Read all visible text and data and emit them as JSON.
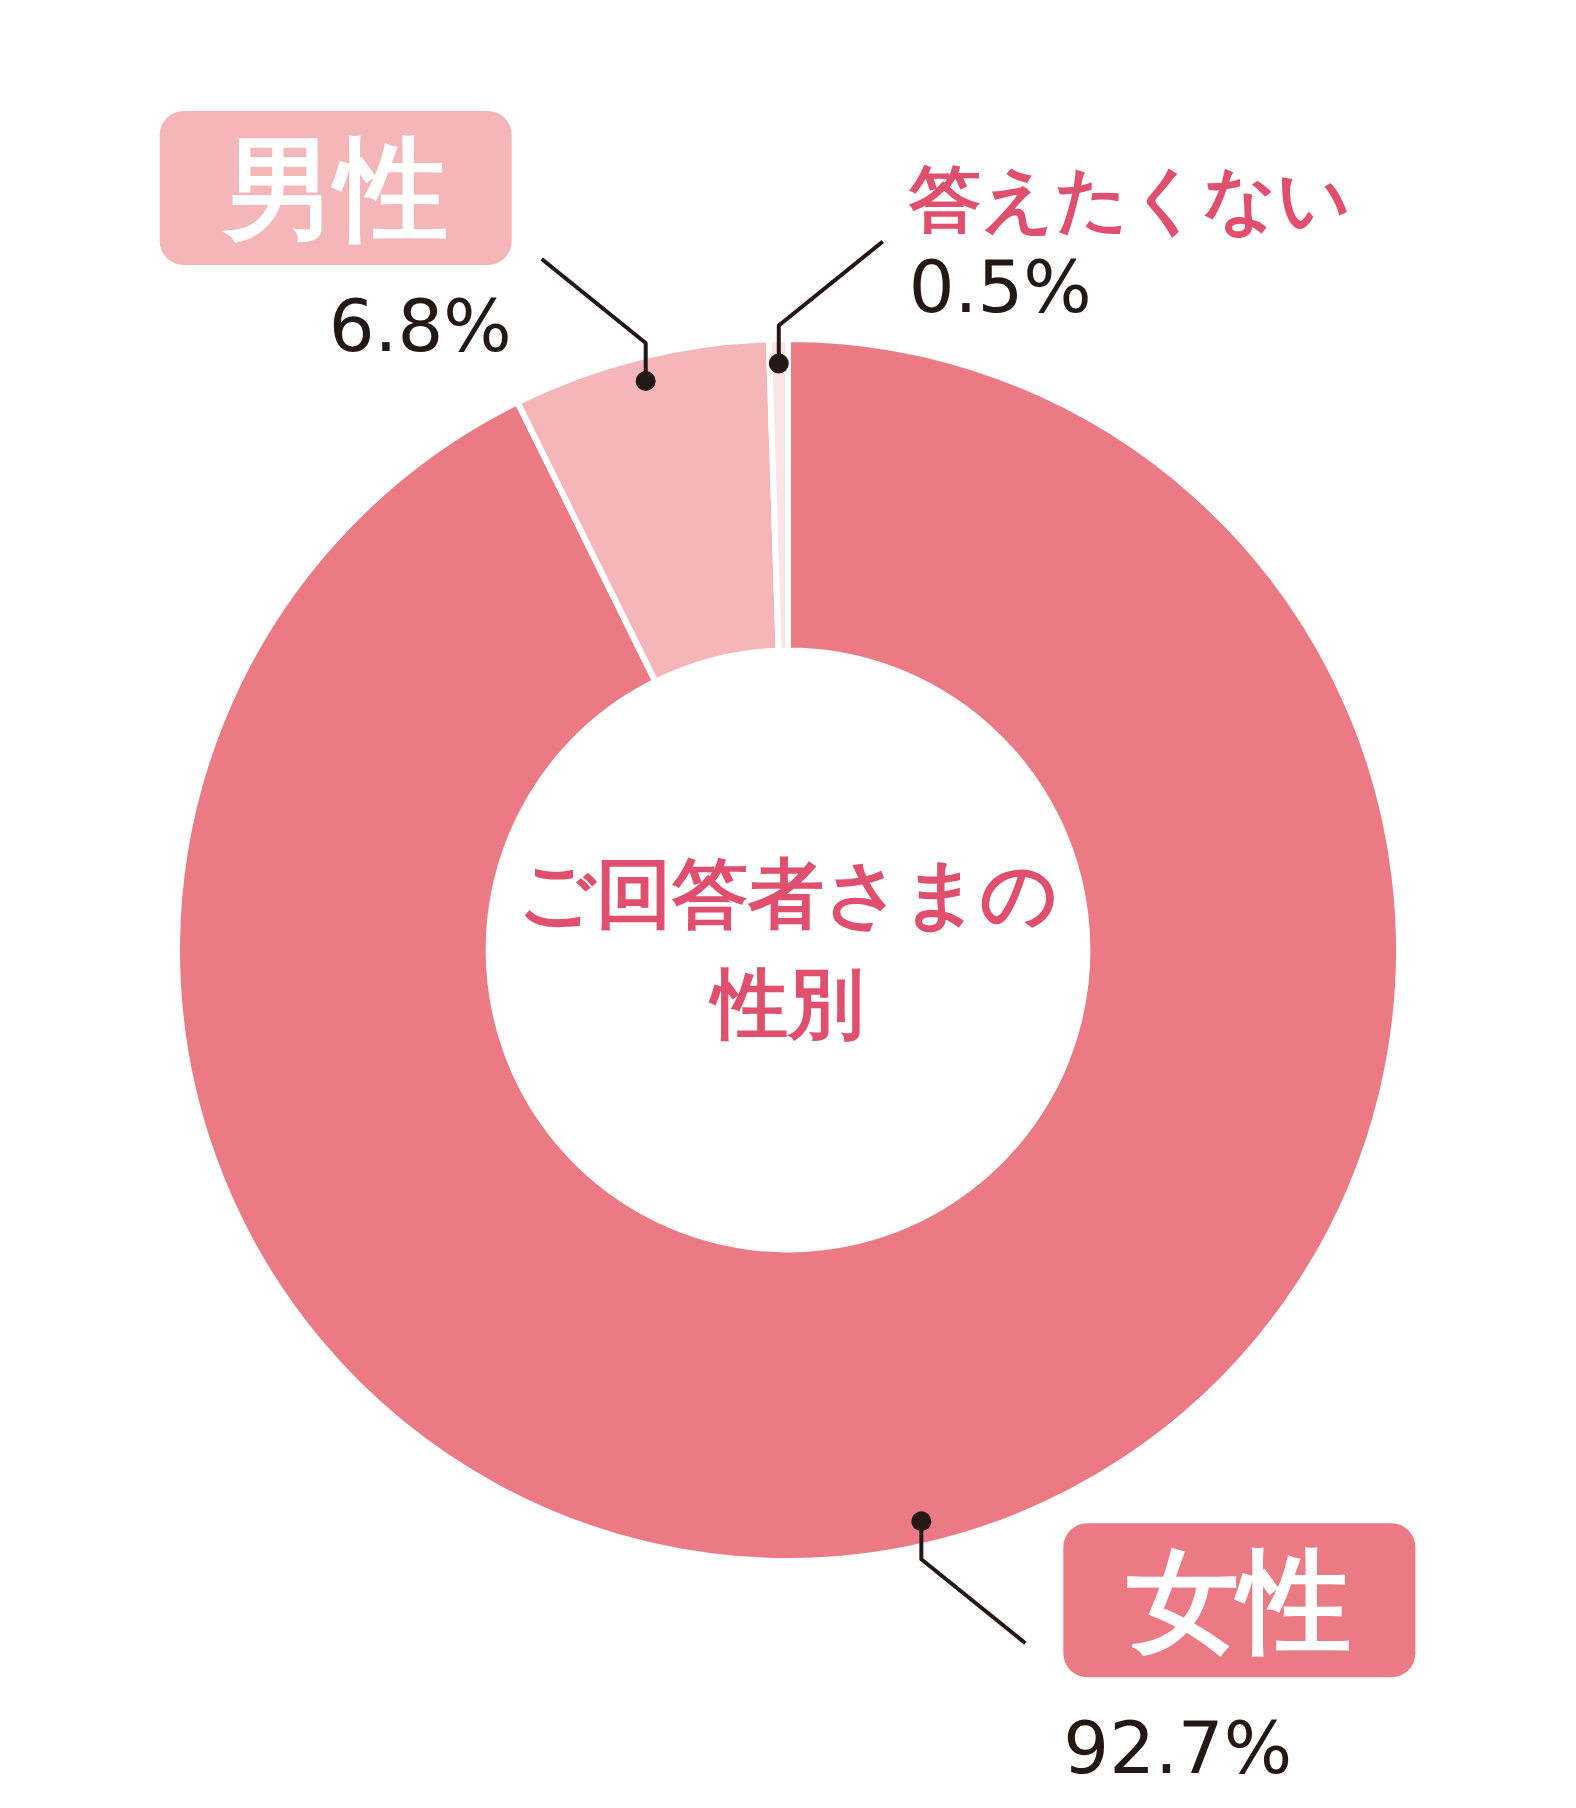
{
  "chart_data": {
    "type": "donut",
    "title": "ご回答者さまの性別",
    "categories": [
      "女性",
      "男性",
      "答えたくない"
    ],
    "values": [
      92.7,
      6.8,
      0.5
    ],
    "colors": [
      "#eb7a84",
      "#f4b6b9",
      "#fbe4e6"
    ],
    "value_labels": [
      "92.7%",
      "6.8%",
      "0.5%"
    ]
  }
}
